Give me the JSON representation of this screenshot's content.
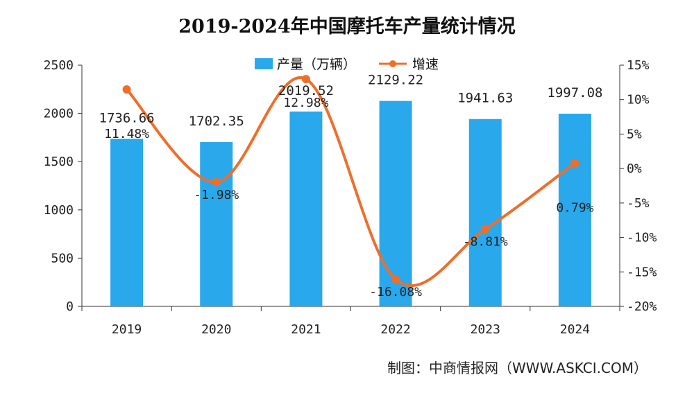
{
  "chart_data": {
    "type": "bar",
    "title": "2019-2024年中国摩托车产量统计情况",
    "categories": [
      "2019",
      "2020",
      "2021",
      "2022",
      "2023",
      "2024"
    ],
    "series": [
      {
        "name": "产量（万辆）",
        "type": "bar",
        "axis": "left",
        "values": [
          1736.66,
          1702.35,
          2019.52,
          2129.22,
          1941.63,
          1997.08
        ],
        "labels": [
          "1736.66",
          "1702.35",
          "2019.52",
          "2129.22",
          "1941.63",
          "1997.08"
        ]
      },
      {
        "name": "增速",
        "type": "line",
        "axis": "right",
        "values": [
          11.48,
          -1.98,
          12.98,
          -16.08,
          -8.81,
          0.79
        ],
        "labels": [
          "11.48%",
          "-1.98%",
          "12.98%",
          "-16.08%",
          "-8.81%",
          "0.79%"
        ]
      }
    ],
    "y_left": {
      "lim": [
        0,
        2500
      ],
      "ticks": [
        "0",
        "500",
        "1000",
        "1500",
        "2000",
        "2500"
      ]
    },
    "y_right": {
      "lim": [
        -20,
        15
      ],
      "ticks": [
        "-20%",
        "-15%",
        "-10%",
        "-5%",
        "0%",
        "5%",
        "10%",
        "15%"
      ]
    },
    "legend_position": "top-center",
    "grid": false,
    "colors": {
      "bar": "#29a8ec",
      "line": "#ef6e2a",
      "axis": "#333333"
    }
  },
  "source": "制图：中商情报网（WWW.ASKCI.COM）"
}
